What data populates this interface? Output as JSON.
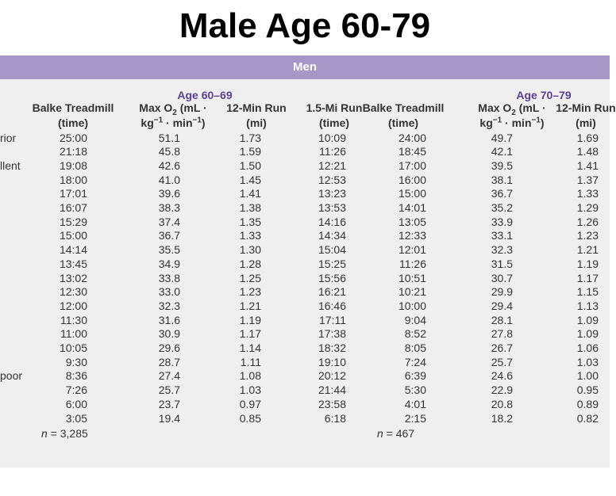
{
  "title": "Male Age 60-79",
  "banner": "Men",
  "groups": [
    {
      "label": "Age 60–69",
      "center": 1
    },
    {
      "label": "Age 70–79",
      "center": 5
    }
  ],
  "columns": [
    {
      "lines": [
        [
          {
            "text": "Balke Treadmill"
          }
        ],
        [
          {
            "text": "(time)"
          }
        ]
      ]
    },
    {
      "lines": [
        [
          {
            "text": "Max O"
          },
          {
            "text": "2",
            "pos": "sub"
          },
          {
            "text": " (mL ·"
          }
        ],
        [
          {
            "text": "kg"
          },
          {
            "text": "−1",
            "pos": "sup"
          },
          {
            "text": " · min"
          },
          {
            "text": "−1",
            "pos": "sup"
          },
          {
            "text": ")"
          }
        ]
      ]
    },
    {
      "lines": [
        [
          {
            "text": "12-Min Run"
          }
        ],
        [
          {
            "text": "(mi)"
          }
        ]
      ]
    },
    {
      "lines": [
        [
          {
            "text": "1.5-Mi Run"
          }
        ],
        [
          {
            "text": "(time)"
          }
        ]
      ]
    },
    {
      "lines": [
        [
          {
            "text": "Balke Treadmill"
          }
        ],
        [
          {
            "text": "(time)"
          }
        ]
      ]
    },
    {
      "lines": [
        [
          {
            "text": "Max O"
          },
          {
            "text": "2",
            "pos": "sub"
          },
          {
            "text": " (mL ·"
          }
        ],
        [
          {
            "text": "kg"
          },
          {
            "text": "−1",
            "pos": "sup"
          },
          {
            "text": " · min"
          },
          {
            "text": "−1",
            "pos": "sup"
          },
          {
            "text": ")"
          }
        ]
      ]
    },
    {
      "lines": [
        [
          {
            "text": "12-Min Run"
          }
        ],
        [
          {
            "text": "(mi)"
          }
        ]
      ]
    }
  ],
  "row_labels": [
    "rior",
    null,
    "llent",
    null,
    null,
    null,
    null,
    null,
    null,
    null,
    null,
    null,
    null,
    null,
    null,
    null,
    null,
    "poor",
    null,
    null,
    null
  ],
  "rows": [
    [
      "25:00",
      "51.1",
      "1.73",
      "10:09",
      "24:00",
      "49.7",
      "1.69"
    ],
    [
      "21:18",
      "45.8",
      "1.59",
      "11:26",
      "18:45",
      "42.1",
      "1.48"
    ],
    [
      "19:08",
      "42.6",
      "1.50",
      "12:21",
      "17:00",
      "39.5",
      "1.41"
    ],
    [
      "18:00",
      "41.0",
      "1.45",
      "12:53",
      "16:00",
      "38.1",
      "1.37"
    ],
    [
      "17:01",
      "39.6",
      "1.41",
      "13:23",
      "15:00",
      "36.7",
      "1.33"
    ],
    [
      "16:07",
      "38.3",
      "1.38",
      "13:53",
      "14:01",
      "35.2",
      "1.29"
    ],
    [
      "15:29",
      "37.4",
      "1.35",
      "14:16",
      "13:05",
      "33.9",
      "1.26"
    ],
    [
      "15:00",
      "36.7",
      "1.33",
      "14:34",
      "12:33",
      "33.1",
      "1.23"
    ],
    [
      "14:14",
      "35.5",
      "1.30",
      "15:04",
      "12:01",
      "32.3",
      "1.21"
    ],
    [
      "13:45",
      "34.9",
      "1.28",
      "15:25",
      "11:26",
      "31.5",
      "1.19"
    ],
    [
      "13:02",
      "33.8",
      "1.25",
      "15:56",
      "10:51",
      "30.7",
      "1.17"
    ],
    [
      "12:30",
      "33.0",
      "1.23",
      "16:21",
      "10:21",
      "29.9",
      "1.15"
    ],
    [
      "12:00",
      "32.3",
      "1.21",
      "16:46",
      "10:00",
      "29.4",
      "1.13"
    ],
    [
      "11:30",
      "31.6",
      "1.19",
      "17:11",
      "9:04",
      "28.1",
      "1.09"
    ],
    [
      "11:00",
      "30.9",
      "1.17",
      "17:38",
      "8:52",
      "27.8",
      "1.09"
    ],
    [
      "10:05",
      "29.6",
      "1.14",
      "18:32",
      "8:05",
      "26.7",
      "1.06"
    ],
    [
      "9:30",
      "28.7",
      "1.11",
      "19:10",
      "7:24",
      "25.7",
      "1.03"
    ],
    [
      "8:36",
      "27.4",
      "1.08",
      "20:12",
      "6:39",
      "24.6",
      "1.00"
    ],
    [
      "7:26",
      "25.7",
      "1.03",
      "21:44",
      "5:30",
      "22.9",
      "0.95"
    ],
    [
      "6:00",
      "23.7",
      "0.97",
      "23:58",
      "4:01",
      "20.8",
      "0.89"
    ],
    [
      "3:05",
      "19.4",
      "0.85",
      "6:18",
      "2:15",
      "18.2",
      "0.82"
    ]
  ],
  "notes": [
    {
      "column": 0,
      "parts": [
        {
          "text": "n",
          "italic": true
        },
        {
          "text": " = 3,285"
        }
      ]
    },
    {
      "column": 4,
      "parts": [
        {
          "text": "n",
          "italic": true
        },
        {
          "text": " = 467"
        }
      ]
    }
  ]
}
